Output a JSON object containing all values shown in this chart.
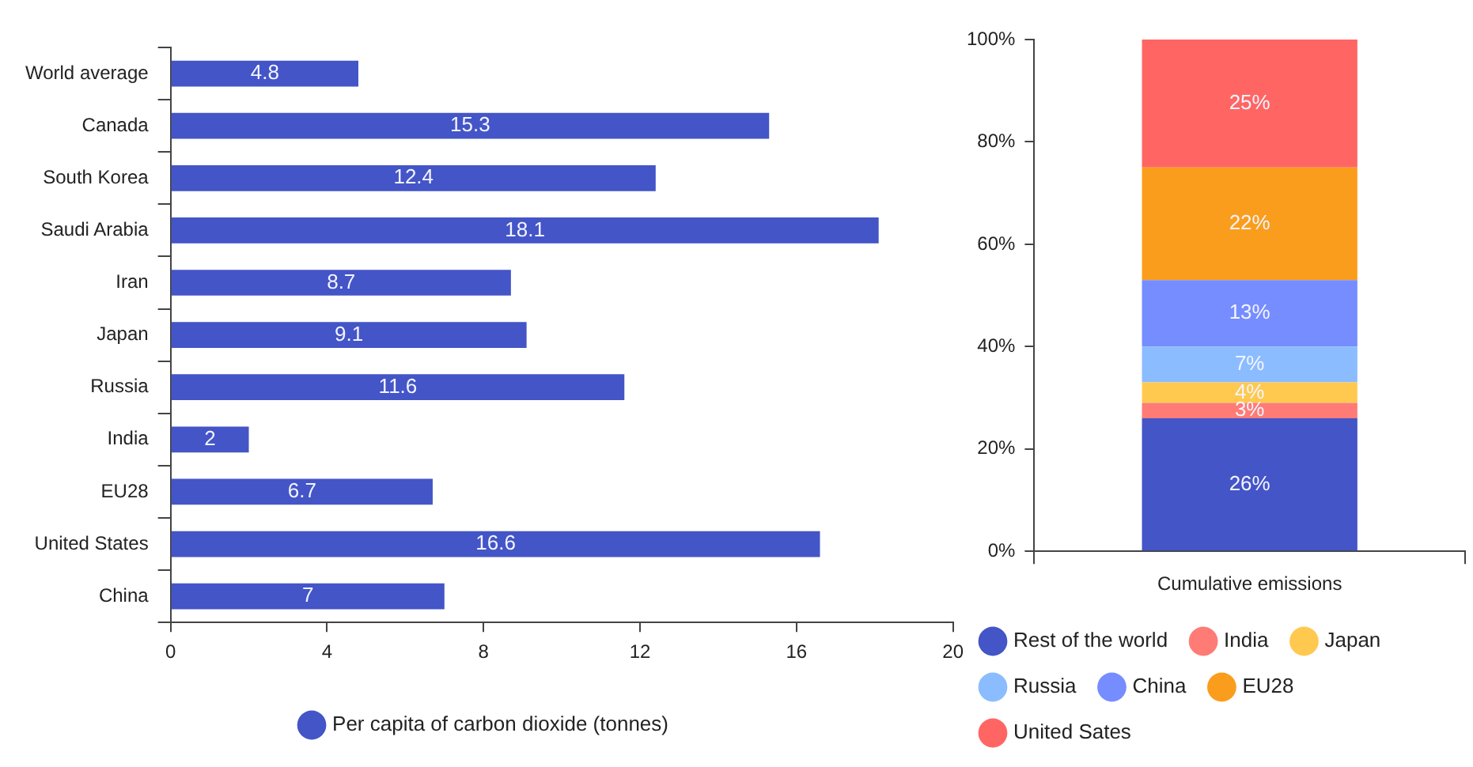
{
  "chart_data": [
    {
      "type": "bar",
      "orientation": "horizontal",
      "categories": [
        "World average",
        "Canada",
        "South Korea",
        "Saudi Arabia",
        "Iran",
        "Japan",
        "Russia",
        "India",
        "EU28",
        "United States",
        "China"
      ],
      "series": [
        {
          "name": "Per capita of carbon dioxide (tonnes)",
          "color": "#4355c7",
          "values": [
            4.8,
            15.3,
            12.4,
            18.1,
            8.7,
            9.1,
            11.6,
            2,
            6.7,
            16.6,
            7
          ]
        }
      ],
      "xlim": [
        0,
        20
      ],
      "xticks": [
        0,
        4,
        8,
        12,
        16,
        20
      ],
      "data_labels": true,
      "grid": false,
      "legend": "bottom"
    },
    {
      "type": "bar",
      "stacked": true,
      "categories": [
        "Cumulative emissions"
      ],
      "series": [
        {
          "name": "Rest of the world",
          "color": "#4355c7",
          "values": [
            26
          ],
          "value_labels": [
            "26%"
          ]
        },
        {
          "name": "India",
          "color": "#ff7b75",
          "values": [
            3
          ],
          "value_labels": [
            "3%"
          ]
        },
        {
          "name": "Japan",
          "color": "#ffc94f",
          "values": [
            4
          ],
          "value_labels": [
            "4%"
          ]
        },
        {
          "name": "Russia",
          "color": "#8bbcff",
          "values": [
            7
          ],
          "value_labels": [
            "7%"
          ]
        },
        {
          "name": "China",
          "color": "#758dff",
          "values": [
            13
          ],
          "value_labels": [
            "13%"
          ]
        },
        {
          "name": "EU28",
          "color": "#fb9d1c",
          "values": [
            22
          ],
          "value_labels": [
            "22%"
          ]
        },
        {
          "name": "United Sates",
          "color": "#ff6663",
          "values": [
            25
          ],
          "value_labels": [
            "25%"
          ]
        }
      ],
      "ylim": [
        0,
        100
      ],
      "yticks": [
        {
          "value": 0,
          "label": "0%"
        },
        {
          "value": 20,
          "label": "20%"
        },
        {
          "value": 40,
          "label": "40%"
        },
        {
          "value": 60,
          "label": "60%"
        },
        {
          "value": 80,
          "label": "80%"
        },
        {
          "value": 100,
          "label": "100%"
        }
      ],
      "grid": false,
      "legend": "bottom"
    }
  ]
}
